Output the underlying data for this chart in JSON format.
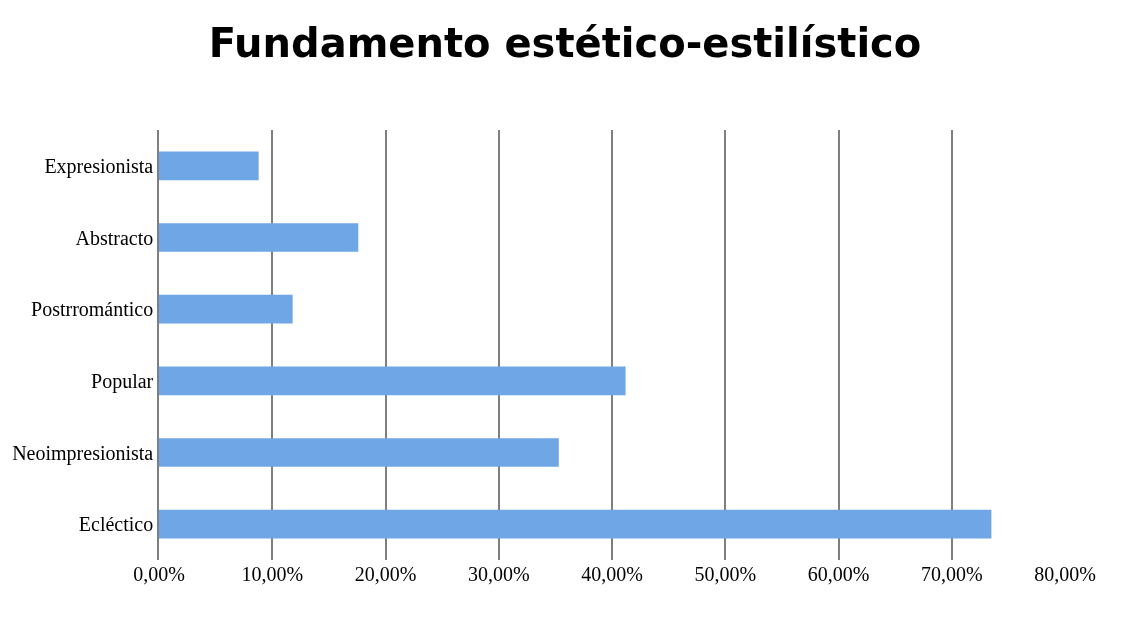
{
  "chart_data": {
    "type": "bar",
    "orientation": "horizontal",
    "title": "Fundamento estético-estilístico",
    "categories": [
      "Expresionista",
      "Abstracto",
      "Postrromántico",
      "Popular",
      "Neoimpresionista",
      "Ecléctico"
    ],
    "values": [
      8.8,
      17.6,
      11.8,
      41.2,
      35.3,
      73.5
    ],
    "color": "#6ea6e6",
    "xlim": [
      0,
      80
    ],
    "xticks": [
      {
        "value": 0,
        "label": "0,00%"
      },
      {
        "value": 10,
        "label": "10,00%"
      },
      {
        "value": 20,
        "label": "20,00%"
      },
      {
        "value": 30,
        "label": "30,00%"
      },
      {
        "value": 40,
        "label": "40,00%"
      },
      {
        "value": 50,
        "label": "50,00%"
      },
      {
        "value": 60,
        "label": "60,00%"
      },
      {
        "value": 70,
        "label": "70,00%"
      },
      {
        "value": 80,
        "label": "80,00%"
      }
    ],
    "grid": "x",
    "legend": false
  }
}
